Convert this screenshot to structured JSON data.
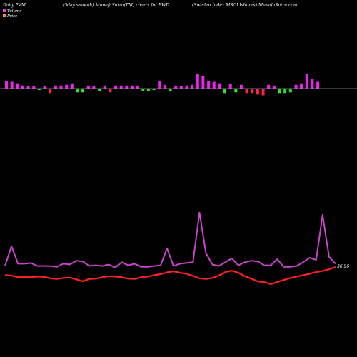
{
  "header": {
    "left": "Daily PVM",
    "center": "(5day smooth) MunafaSutra(TM) charts for EWD",
    "right": "(Sweden Index MSCI Ishares) MunafaSutra.com"
  },
  "legend": {
    "volume_label": "Volume",
    "price_label": "Price",
    "volume_color": "#dd44dd",
    "price_color": "#ff8844"
  },
  "colors": {
    "background": "#000000",
    "bar_up": "#ee22ee",
    "bar_down": "#ff2244",
    "bar_green": "#33dd33",
    "volume_line": "#cc44cc",
    "price_line": "#ff2222",
    "zero_line": "#999999"
  },
  "chart_data": {
    "type": "line",
    "price_label": "36.96",
    "volume_bars": [
      {
        "value": 10,
        "color": "up"
      },
      {
        "value": 9,
        "color": "up"
      },
      {
        "value": 7,
        "color": "up"
      },
      {
        "value": 4,
        "color": "up"
      },
      {
        "value": 3,
        "color": "up"
      },
      {
        "value": 3,
        "color": "up"
      },
      {
        "value": -2,
        "color": "green"
      },
      {
        "value": 3,
        "color": "up"
      },
      {
        "value": -6,
        "color": "down"
      },
      {
        "value": 4,
        "color": "up"
      },
      {
        "value": 4,
        "color": "up"
      },
      {
        "value": 5,
        "color": "up"
      },
      {
        "value": 7,
        "color": "up"
      },
      {
        "value": -5,
        "color": "green"
      },
      {
        "value": -5,
        "color": "green"
      },
      {
        "value": 4,
        "color": "up"
      },
      {
        "value": 3,
        "color": "up"
      },
      {
        "value": -3,
        "color": "green"
      },
      {
        "value": 4,
        "color": "up"
      },
      {
        "value": -5,
        "color": "down"
      },
      {
        "value": 4,
        "color": "up"
      },
      {
        "value": 4,
        "color": "up"
      },
      {
        "value": 4,
        "color": "up"
      },
      {
        "value": 4,
        "color": "up"
      },
      {
        "value": 3,
        "color": "up"
      },
      {
        "value": -3,
        "color": "green"
      },
      {
        "value": -3,
        "color": "green"
      },
      {
        "value": -2,
        "color": "green"
      },
      {
        "value": 10,
        "color": "up"
      },
      {
        "value": 5,
        "color": "up"
      },
      {
        "value": -4,
        "color": "green"
      },
      {
        "value": 4,
        "color": "up"
      },
      {
        "value": 3,
        "color": "up"
      },
      {
        "value": 4,
        "color": "up"
      },
      {
        "value": 5,
        "color": "up"
      },
      {
        "value": 20,
        "color": "up"
      },
      {
        "value": 17,
        "color": "up"
      },
      {
        "value": 10,
        "color": "up"
      },
      {
        "value": 9,
        "color": "up"
      },
      {
        "value": 7,
        "color": "up"
      },
      {
        "value": -6,
        "color": "green"
      },
      {
        "value": 6,
        "color": "up"
      },
      {
        "value": -5,
        "color": "green"
      },
      {
        "value": 5,
        "color": "up"
      },
      {
        "value": -6,
        "color": "down"
      },
      {
        "value": -6,
        "color": "down"
      },
      {
        "value": -8,
        "color": "down"
      },
      {
        "value": -9,
        "color": "down"
      },
      {
        "value": 5,
        "color": "up"
      },
      {
        "value": 4,
        "color": "up"
      },
      {
        "value": -6,
        "color": "green"
      },
      {
        "value": -6,
        "color": "green"
      },
      {
        "value": -5,
        "color": "green"
      },
      {
        "value": 5,
        "color": "up"
      },
      {
        "value": 7,
        "color": "up"
      },
      {
        "value": 19,
        "color": "up"
      },
      {
        "value": 13,
        "color": "up"
      },
      {
        "value": 9,
        "color": "up"
      }
    ],
    "volume_line": [
      5,
      31,
      8,
      8,
      9,
      5,
      5,
      5,
      4,
      8,
      7,
      12,
      11,
      5,
      6,
      5,
      7,
      3,
      10,
      6,
      8,
      4,
      4,
      5,
      6,
      28,
      5,
      8,
      9,
      10,
      75,
      22,
      7,
      5,
      10,
      15,
      6,
      10,
      12,
      11,
      6,
      6,
      14,
      4,
      4,
      5,
      10,
      16,
      13,
      72,
      17,
      8
    ],
    "price_line": [
      34.6,
      34.5,
      34.0,
      34.1,
      34.0,
      34.2,
      34.1,
      33.7,
      33.5,
      33.8,
      33.9,
      33.4,
      32.8,
      33.5,
      33.6,
      34.0,
      34.3,
      34.2,
      34.0,
      33.6,
      33.5,
      34.0,
      34.2,
      34.6,
      34.9,
      35.4,
      35.7,
      35.3,
      35.0,
      34.4,
      33.7,
      33.5,
      33.8,
      34.5,
      35.5,
      35.9,
      35.3,
      34.3,
      33.6,
      32.8,
      32.6,
      32.0,
      32.6,
      33.2,
      33.8,
      34.2,
      34.6,
      35.0,
      35.5,
      35.8,
      36.3,
      36.96
    ]
  }
}
